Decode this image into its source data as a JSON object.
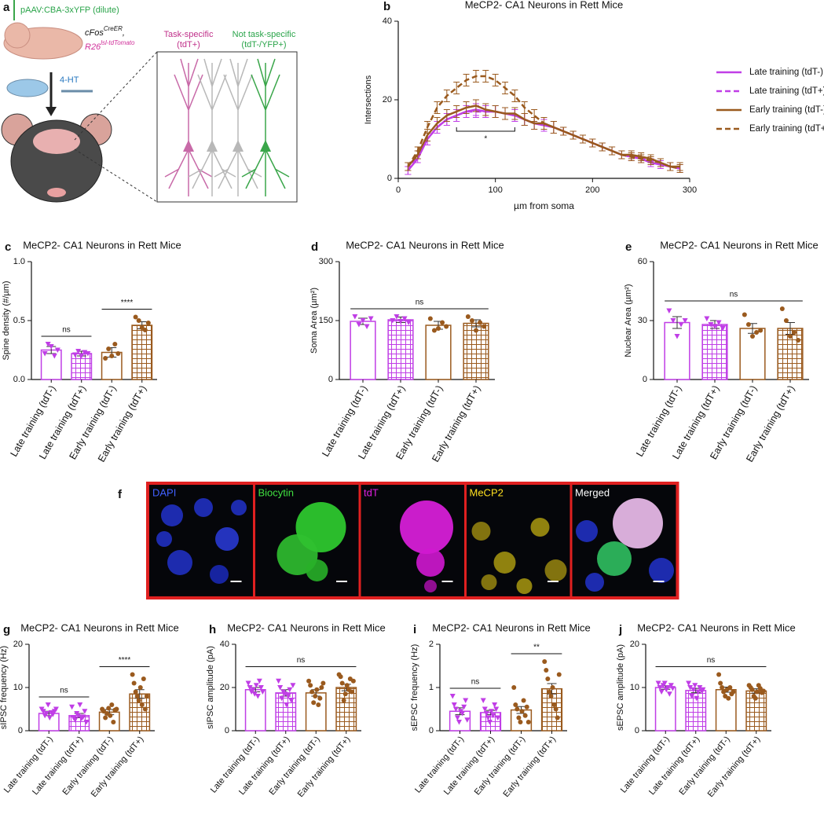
{
  "panel_a": {
    "label": "a",
    "injection": "pAAV:CBA-3xYFP (dilute)",
    "gene_1": "cFos",
    "gene_1_sup": "CreER",
    "gene_1_end": ",",
    "gene_2": "R26",
    "gene_2_sup": "lsl-tdTomato",
    "drug": "4-HT",
    "group_1": "Task-specific",
    "group_1_tag": "(tdT+)",
    "group_2": "Not task-specific",
    "group_2_tag": "(tdT-/YFP+)"
  },
  "panel_f": {
    "label": "f",
    "channels": [
      "DAPI",
      "Biocytin",
      "tdT",
      "MeCP2",
      "Merged"
    ]
  },
  "chart_data": [
    {
      "type": "line",
      "panel": "b",
      "title": "MeCP2- CA1 Neurons in Rett Mice",
      "xlabel": "µm from soma",
      "ylabel": "Intersections",
      "x": [
        10,
        20,
        30,
        40,
        50,
        60,
        70,
        80,
        90,
        100,
        110,
        120,
        130,
        140,
        150,
        160,
        170,
        180,
        190,
        200,
        210,
        220,
        230,
        240,
        250,
        260,
        270,
        280,
        290
      ],
      "xlim": [
        0,
        300
      ],
      "xticks": [
        0,
        100,
        200,
        300
      ],
      "ylim": [
        0,
        40
      ],
      "yticks": [
        0,
        20,
        40
      ],
      "series": [
        {
          "name": "Late training (tdT-)",
          "color": "#c03ee6",
          "dashed": false,
          "values": [
            2,
            5,
            10,
            13,
            15,
            16,
            17,
            17.5,
            17,
            17,
            16.5,
            16,
            15,
            14,
            13.5,
            13,
            12,
            11,
            10,
            9,
            8,
            7,
            6,
            5.5,
            5,
            4,
            3.5,
            3,
            2.5
          ],
          "errors": [
            1,
            1,
            1.5,
            1.5,
            1.5,
            1.5,
            1.5,
            1.5,
            1.5,
            1.5,
            1.5,
            1.5,
            1.5,
            1.5,
            1.5,
            1.5,
            1,
            1,
            1,
            1,
            1,
            1,
            1,
            1,
            1,
            1,
            1,
            1,
            1
          ]
        },
        {
          "name": "Late training (tdT+)",
          "color": "#c03ee6",
          "dashed": true,
          "values": [
            2,
            6,
            10,
            13,
            15,
            16,
            17,
            17,
            17,
            17,
            16.5,
            16,
            15,
            14,
            14,
            13,
            12,
            11,
            10,
            9,
            8,
            7,
            6,
            5.5,
            5,
            4.5,
            4,
            3,
            2.5
          ],
          "errors": [
            1,
            1,
            1.5,
            1.5,
            1.5,
            1.5,
            1.5,
            1.5,
            1.5,
            1.5,
            1.5,
            1.5,
            1.5,
            1.5,
            1.5,
            1.5,
            1,
            1,
            1,
            1,
            1,
            1,
            1,
            1,
            1,
            1,
            1,
            1,
            1
          ]
        },
        {
          "name": "Early training (tdT-)",
          "color": "#9a5a1e",
          "dashed": false,
          "values": [
            3,
            6,
            11,
            14,
            16,
            17,
            18,
            18.5,
            17.5,
            17,
            16.5,
            16.5,
            15,
            14,
            14,
            13,
            12,
            11,
            10,
            9,
            8,
            7,
            6,
            6,
            5.5,
            5,
            4,
            3,
            3
          ],
          "errors": [
            1,
            1,
            1.5,
            1.5,
            1.5,
            1.5,
            1.5,
            1.5,
            1.5,
            1.5,
            1.5,
            1.5,
            1.5,
            1.5,
            1.5,
            1.5,
            1,
            1,
            1,
            1,
            1,
            1,
            1,
            1,
            1,
            1,
            1,
            1,
            1
          ]
        },
        {
          "name": "Early training (tdT+)",
          "color": "#9a5a1e",
          "dashed": true,
          "values": [
            3,
            7,
            13,
            18,
            21,
            23,
            25,
            26,
            26,
            25,
            23,
            21,
            18,
            16,
            14,
            13,
            12,
            11,
            10,
            9,
            8,
            7,
            6,
            5.5,
            5,
            4.5,
            4,
            3,
            2.5
          ],
          "errors": [
            1,
            1,
            1.5,
            1.5,
            1.5,
            1.5,
            1.5,
            1.5,
            1.5,
            1.5,
            1.5,
            1.5,
            1.5,
            1.5,
            1.5,
            1.5,
            1,
            1,
            1,
            1,
            1,
            1,
            1,
            1,
            1,
            1,
            1,
            1,
            1
          ]
        }
      ],
      "annotations": [
        {
          "label": "*",
          "x": [
            60,
            120
          ]
        }
      ]
    },
    {
      "type": "bar",
      "panel": "c",
      "title": "MeCP2- CA1 Neurons in Rett Mice",
      "ylabel": "Spine density (#/µm)",
      "categories": [
        "Late training (tdT-)",
        "Late training (tdT+)",
        "Early training (tdT-)",
        "Early training (tdT+)"
      ],
      "values": [
        0.25,
        0.22,
        0.23,
        0.46
      ],
      "errors": [
        0.03,
        0.02,
        0.04,
        0.03
      ],
      "points": [
        [
          0.22,
          0.3,
          0.28,
          0.2,
          0.25
        ],
        [
          0.21,
          0.24,
          0.2,
          0.23,
          0.22
        ],
        [
          0.18,
          0.26,
          0.2,
          0.3,
          0.22
        ],
        [
          0.53,
          0.5,
          0.44,
          0.42,
          0.48
        ]
      ],
      "colors": [
        "#c03ee6",
        "#c03ee6",
        "#9a5a1e",
        "#9a5a1e"
      ],
      "fills": [
        "open",
        "grid",
        "open",
        "grid"
      ],
      "markers": [
        "triangle",
        "triangle",
        "circle",
        "circle"
      ],
      "ylim": [
        0,
        1
      ],
      "yticks": [
        {
          "value": 0,
          "label": "0.0"
        },
        {
          "value": 0.5,
          "label": "0.5"
        },
        {
          "value": 1,
          "label": "1.0"
        }
      ],
      "annotations": [
        {
          "between": [
            0,
            1
          ],
          "label": "ns"
        },
        {
          "between": [
            2,
            3
          ],
          "label": "****"
        }
      ]
    },
    {
      "type": "bar",
      "panel": "d",
      "title": "MeCP2- CA1 Neurons in Rett Mice",
      "ylabel": "Soma Area (µm²)",
      "categories": [
        "Late training (tdT-)",
        "Late training (tdT+)",
        "Early training (tdT-)",
        "Early training (tdT+)"
      ],
      "values": [
        148,
        152,
        138,
        143
      ],
      "errors": [
        8,
        7,
        10,
        9
      ],
      "points": [
        [
          160,
          140,
          150,
          135,
          155
        ],
        [
          150,
          160,
          148,
          155,
          145
        ],
        [
          155,
          125,
          130,
          145,
          135
        ],
        [
          160,
          150,
          125,
          145,
          135
        ]
      ],
      "colors": [
        "#c03ee6",
        "#c03ee6",
        "#9a5a1e",
        "#9a5a1e"
      ],
      "fills": [
        "open",
        "grid",
        "open",
        "grid"
      ],
      "markers": [
        "triangle",
        "triangle",
        "circle",
        "circle"
      ],
      "ylim": [
        0,
        300
      ],
      "yticks": [
        0,
        150,
        300
      ],
      "annotations": [
        {
          "between": [
            0,
            3
          ],
          "label": "ns"
        }
      ]
    },
    {
      "type": "bar",
      "panel": "e",
      "title": "MeCP2- CA1 Neurons in Rett Mice",
      "ylabel": "Nuclear Area (µm²)",
      "categories": [
        "Late training (tdT-)",
        "Late training (tdT+)",
        "Early training (tdT-)",
        "Early training (tdT+)"
      ],
      "values": [
        29,
        28,
        26,
        26
      ],
      "errors": [
        3,
        2,
        2.5,
        3
      ],
      "points": [
        [
          35,
          30,
          22,
          28,
          30
        ],
        [
          31,
          28,
          27,
          29,
          26
        ],
        [
          33,
          28,
          22,
          24,
          25
        ],
        [
          36,
          30,
          22,
          24,
          20
        ]
      ],
      "colors": [
        "#c03ee6",
        "#c03ee6",
        "#9a5a1e",
        "#9a5a1e"
      ],
      "fills": [
        "open",
        "grid",
        "open",
        "grid"
      ],
      "markers": [
        "triangle",
        "triangle",
        "circle",
        "circle"
      ],
      "ylim": [
        0,
        60
      ],
      "yticks": [
        0,
        30,
        60
      ],
      "annotations": [
        {
          "between": [
            0,
            3
          ],
          "label": "ns"
        }
      ]
    },
    {
      "type": "bar",
      "panel": "g",
      "title": "MeCP2- CA1 Neurons in Rett Mice",
      "ylabel": "sIPSC frequency (Hz)",
      "categories": [
        "Late training (tdT-)",
        "Late training (tdT+)",
        "Early training (tdT-)",
        "Early training (tdT+)"
      ],
      "values": [
        4,
        3.5,
        4.3,
        8.5
      ],
      "errors": [
        0.5,
        0.5,
        0.6,
        1
      ],
      "points": [
        [
          5,
          4.5,
          3.5,
          4,
          6,
          3,
          4.2,
          3.8,
          4.5,
          5
        ],
        [
          5.5,
          3,
          2.5,
          4,
          3.5,
          6,
          2.8,
          3.2,
          4.5,
          2
        ],
        [
          5,
          4.5,
          3,
          4,
          5.2,
          3.5,
          6,
          2,
          4.8,
          5
        ],
        [
          13,
          11,
          9,
          8,
          7,
          10,
          6,
          12,
          5,
          8
        ]
      ],
      "colors": [
        "#c03ee6",
        "#c03ee6",
        "#9a5a1e",
        "#9a5a1e"
      ],
      "fills": [
        "open",
        "grid",
        "open",
        "grid"
      ],
      "markers": [
        "triangle",
        "triangle",
        "circle",
        "circle"
      ],
      "ylim": [
        0,
        20
      ],
      "yticks": [
        0,
        10,
        20
      ],
      "annotations": [
        {
          "between": [
            0,
            1
          ],
          "label": "ns"
        },
        {
          "between": [
            2,
            3
          ],
          "label": "****"
        }
      ]
    },
    {
      "type": "bar",
      "panel": "h",
      "title": "MeCP2- CA1 Neurons in Rett Mice",
      "ylabel": "sIPSC amplitude (pA)",
      "categories": [
        "Late training (tdT-)",
        "Late training (tdT+)",
        "Early training (tdT-)",
        "Early training (tdT+)"
      ],
      "values": [
        19,
        17.5,
        17.5,
        20
      ],
      "errors": [
        1,
        1.5,
        1.5,
        1.5
      ],
      "points": [
        [
          22,
          20,
          18,
          19,
          17,
          21,
          16,
          23,
          20,
          18
        ],
        [
          23,
          20,
          15,
          18,
          17,
          12,
          16,
          19,
          14,
          21
        ],
        [
          23,
          21,
          18,
          13,
          16,
          19,
          12,
          15,
          20,
          22
        ],
        [
          26,
          25,
          22,
          14,
          17,
          21,
          19,
          24,
          18,
          23
        ]
      ],
      "colors": [
        "#c03ee6",
        "#c03ee6",
        "#9a5a1e",
        "#9a5a1e"
      ],
      "fills": [
        "open",
        "grid",
        "open",
        "grid"
      ],
      "markers": [
        "triangle",
        "triangle",
        "circle",
        "circle"
      ],
      "ylim": [
        0,
        40
      ],
      "yticks": [
        0,
        20,
        40
      ],
      "annotations": [
        {
          "between": [
            0,
            3
          ],
          "label": "ns"
        }
      ]
    },
    {
      "type": "bar",
      "panel": "i",
      "title": "MeCP2- CA1 Neurons in Rett Mice",
      "ylabel": "sEPSC frequency (Hz)",
      "categories": [
        "Late training (tdT-)",
        "Late training (tdT+)",
        "Early training (tdT-)",
        "Early training (tdT+)"
      ],
      "values": [
        0.45,
        0.42,
        0.48,
        0.97
      ],
      "errors": [
        0.08,
        0.05,
        0.08,
        0.12
      ],
      "points": [
        [
          0.8,
          0.6,
          0.5,
          0.3,
          0.2,
          0.45,
          0.4,
          0.55,
          0.7,
          0.25
        ],
        [
          0.7,
          0.5,
          0.4,
          0.3,
          0.2,
          0.45,
          0.35,
          0.6,
          0.5,
          0.3
        ],
        [
          1.0,
          0.6,
          0.5,
          0.3,
          0.2,
          0.45,
          0.7,
          0.35,
          0.55,
          0.2
        ],
        [
          1.6,
          1.4,
          1.2,
          0.9,
          0.8,
          1.0,
          0.6,
          0.5,
          0.3,
          1.3
        ]
      ],
      "colors": [
        "#c03ee6",
        "#c03ee6",
        "#9a5a1e",
        "#9a5a1e"
      ],
      "fills": [
        "open",
        "grid",
        "open",
        "grid"
      ],
      "markers": [
        "triangle",
        "triangle",
        "circle",
        "circle"
      ],
      "ylim": [
        0,
        2
      ],
      "yticks": [
        0,
        1,
        2
      ],
      "annotations": [
        {
          "between": [
            0,
            1
          ],
          "label": "ns"
        },
        {
          "between": [
            2,
            3
          ],
          "label": "**"
        }
      ]
    },
    {
      "type": "bar",
      "panel": "j",
      "title": "MeCP2- CA1 Neurons in Rett Mice",
      "ylabel": "sEPSC amplitude (pA)",
      "categories": [
        "Late training (tdT-)",
        "Late training (tdT+)",
        "Early training (tdT-)",
        "Early training (tdT+)"
      ],
      "values": [
        10,
        9.3,
        9.5,
        9.2
      ],
      "errors": [
        0.4,
        0.5,
        0.6,
        0.5
      ],
      "points": [
        [
          11,
          10,
          9,
          10.5,
          11,
          9.5,
          10,
          8.5,
          10.5,
          9.8
        ],
        [
          11,
          10,
          8,
          9.5,
          10.5,
          7.5,
          9,
          10,
          9.2,
          9.5
        ],
        [
          13,
          11,
          10,
          9,
          8,
          9.5,
          7.5,
          10,
          8.5,
          9
        ],
        [
          10.5,
          10,
          9.5,
          8,
          7.5,
          9,
          10.5,
          9.8,
          8.8,
          9.2
        ]
      ],
      "colors": [
        "#c03ee6",
        "#c03ee6",
        "#9a5a1e",
        "#9a5a1e"
      ],
      "fills": [
        "open",
        "grid",
        "open",
        "grid"
      ],
      "markers": [
        "triangle",
        "triangle",
        "circle",
        "circle"
      ],
      "ylim": [
        0,
        20
      ],
      "yticks": [
        0,
        10,
        20
      ],
      "annotations": [
        {
          "between": [
            0,
            3
          ],
          "label": "ns"
        }
      ]
    }
  ]
}
